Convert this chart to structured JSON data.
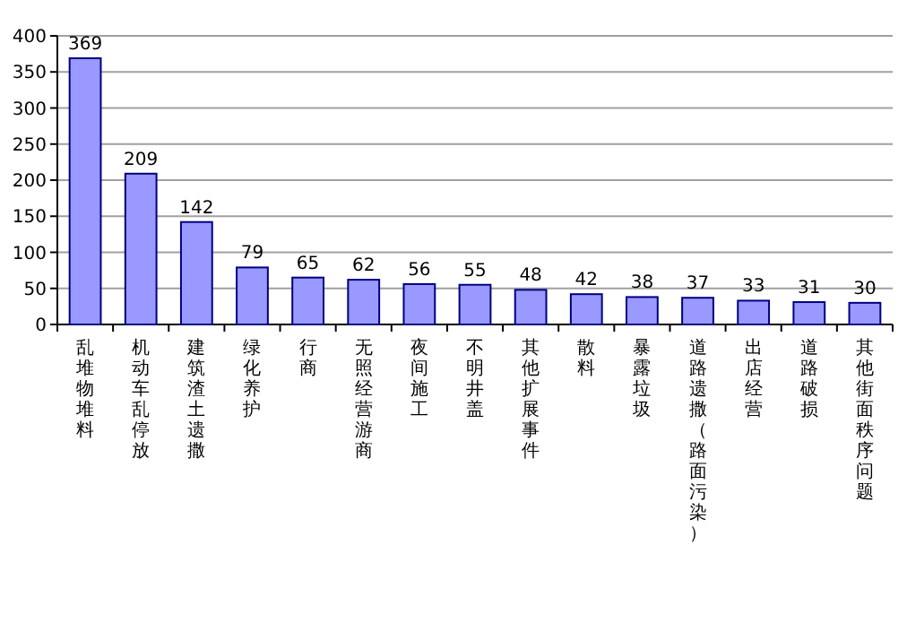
{
  "chart_data": {
    "type": "bar",
    "categories": [
      "乱堆物堆料",
      "机动车乱停放",
      "建筑渣土遗撒",
      "绿化养护",
      "行商",
      "无照经营游商",
      "夜间施工",
      "不明井盖",
      "其他扩展事件",
      "散料",
      "暴露垃圾",
      "道路遗撒（路面污染）",
      "出店经营",
      "道路破损",
      "其他街面秩序问题"
    ],
    "values": [
      369,
      209,
      142,
      79,
      65,
      62,
      56,
      55,
      48,
      42,
      38,
      37,
      33,
      31,
      30
    ],
    "color": "#9999ff",
    "ylim": [
      0,
      400
    ],
    "yticks": [
      0,
      50,
      100,
      150,
      200,
      250,
      300,
      350,
      400
    ],
    "grid": "y",
    "data_labels": true
  }
}
